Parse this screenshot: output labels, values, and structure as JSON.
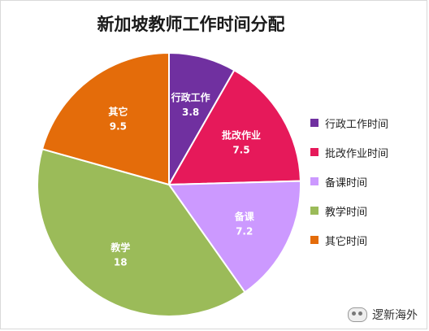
{
  "chart_data": {
    "type": "pie",
    "title": "新加坡教师工作时间分配",
    "slices": [
      {
        "label": "行政工作",
        "value": 3.8,
        "value_text": "3.8",
        "legend": "行政工作时间",
        "color": "#7030a0"
      },
      {
        "label": "批改作业",
        "value": 7.5,
        "value_text": "7.5",
        "legend": "批改作业时间",
        "color": "#e6195a"
      },
      {
        "label": "备课",
        "value": 7.2,
        "value_text": "7.2",
        "legend": "备课时间",
        "color": "#cc99ff"
      },
      {
        "label": "教学",
        "value": 18,
        "value_text": "18",
        "legend": "教学时间",
        "color": "#9bbb59"
      },
      {
        "label": "其它",
        "value": 9.5,
        "value_text": "9.5",
        "legend": "其它时间",
        "color": "#e46c0a"
      }
    ],
    "legend_position": "right"
  },
  "watermark": {
    "text": "逻新海外",
    "icon": "wechat-icon"
  }
}
